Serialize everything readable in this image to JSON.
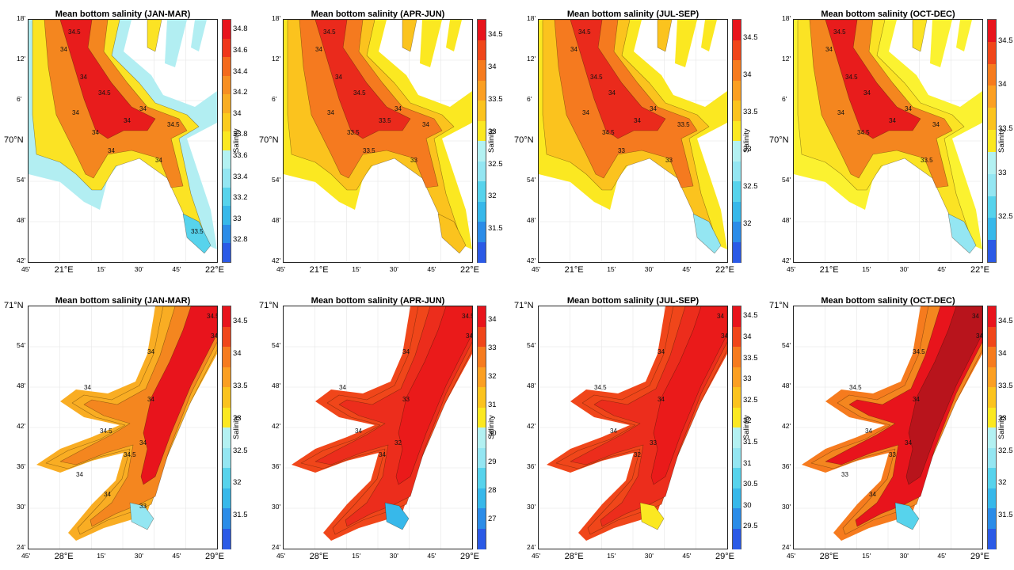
{
  "panels": [
    {
      "title": "Mean bottom salinity (JAN-MAR)",
      "region": "north",
      "y_ticks": [
        "18'",
        "12'",
        "6'",
        "70°N",
        "54'",
        "48'",
        "42'"
      ],
      "x_ticks": [
        "45'",
        "21°E",
        "15'",
        "30'",
        "45'",
        "22°E"
      ],
      "cb_ticks": [
        "34.8",
        "34.6",
        "34.4",
        "34.2",
        "34",
        "33.8",
        "33.6",
        "33.4",
        "33.2",
        "33",
        "32.8"
      ],
      "cb_colors": [
        "#e8141c",
        "#f0361a",
        "#f46a1c",
        "#f78f22",
        "#f9ad23",
        "#fbcb1e",
        "#fbe821",
        "#b3f1f2",
        "#94e6f2",
        "#57d3ec",
        "#37b8ea",
        "#2b8ce8",
        "#2b5ae6"
      ],
      "cb_label": "Salinity",
      "contour_labels": [
        "34.5",
        "34",
        "34",
        "34.5",
        "34",
        "34",
        "34",
        "34.5",
        "34",
        "34",
        "34",
        "33.5"
      ],
      "fill": {
        "deep": "#e81c1c",
        "mid": "#f4861f",
        "shallow": "#fbe324",
        "coast": "#b2eef2",
        "inlet": "#57d3ec"
      }
    },
    {
      "title": "Mean bottom salinity (APR-JUN)",
      "region": "north",
      "y_ticks": [
        "18'",
        "12'",
        "6'",
        "70°N",
        "54'",
        "48'",
        "42'"
      ],
      "x_ticks": [
        "45'",
        "21°E",
        "15'",
        "30'",
        "45'",
        "22°E"
      ],
      "cb_ticks": [
        "34.5",
        "34",
        "33.5",
        "33",
        "32.5",
        "32",
        "31.5"
      ],
      "cb_colors": [
        "#e8141c",
        "#f0461a",
        "#f67b1e",
        "#fb9f22",
        "#fbc31e",
        "#fbe821",
        "#b3f1f2",
        "#94e6f2",
        "#57d3ec",
        "#37b8ea",
        "#2b8ce8",
        "#2b5ae6"
      ],
      "cb_label": "Salinity",
      "contour_labels": [
        "34.5",
        "34",
        "34",
        "34.5",
        "34",
        "33.5",
        "34",
        "34",
        "33.5",
        "33",
        "33.5"
      ],
      "fill": {
        "deep": "#ea2a1c",
        "mid": "#f57a1f",
        "shallow": "#fbc31e",
        "coast": "#fbe821",
        "inlet": "#fbc31e"
      }
    },
    {
      "title": "Mean bottom salinity (JUL-SEP)",
      "region": "north",
      "y_ticks": [
        "18'",
        "12'",
        "6'",
        "70°N",
        "54'",
        "48'",
        "42'"
      ],
      "x_ticks": [
        "45'",
        "21°E",
        "15'",
        "30'",
        "45'",
        "22°E"
      ],
      "cb_ticks": [
        "34.5",
        "34",
        "33.5",
        "33",
        "32.5",
        "32"
      ],
      "cb_colors": [
        "#e8141c",
        "#f0461a",
        "#f67b1e",
        "#fb9f22",
        "#fbc31e",
        "#fbe821",
        "#b3f1f2",
        "#94e6f2",
        "#57d3ec",
        "#37b8ea",
        "#2b8ce8",
        "#2b5ae6"
      ],
      "cb_label": "Salinity",
      "contour_labels": [
        "34.5",
        "34",
        "34.5",
        "34",
        "34",
        "34.5",
        "34",
        "33.5",
        "34",
        "33",
        "33"
      ],
      "fill": {
        "deep": "#ea2a1c",
        "mid": "#f57a1f",
        "shallow": "#fbc31e",
        "coast": "#fbe821",
        "inlet": "#94e6f2"
      }
    },
    {
      "title": "Mean bottom salinity (OCT-DEC)",
      "region": "north",
      "y_ticks": [
        "18'",
        "12'",
        "6'",
        "70°N",
        "54'",
        "48'",
        "42'"
      ],
      "x_ticks": [
        "45'",
        "21°E",
        "15'",
        "30'",
        "45'",
        "22°E"
      ],
      "cb_ticks": [
        "34.5",
        "34",
        "33.5",
        "33",
        "32.5"
      ],
      "cb_colors": [
        "#e8141c",
        "#f0461a",
        "#f67b1e",
        "#fb9f22",
        "#fbc31e",
        "#fbe821",
        "#b3f1f2",
        "#94e6f2",
        "#57d3ec",
        "#37b8ea",
        "#2b5ae6"
      ],
      "cb_label": "Salinity",
      "contour_labels": [
        "34.5",
        "34",
        "34.5",
        "34",
        "34",
        "34.5",
        "34",
        "34",
        "34",
        "33.5"
      ],
      "fill": {
        "deep": "#e81c1c",
        "mid": "#f4861f",
        "shallow": "#fbe324",
        "coast": "#fbf230",
        "inlet": "#94e6f2"
      }
    },
    {
      "title": "Mean bottom salinity (JAN-MAR)",
      "region": "south",
      "y_ticks": [
        "71°N",
        "54'",
        "48'",
        "42'",
        "36'",
        "30'",
        "24'"
      ],
      "x_ticks": [
        "45'",
        "28°E",
        "15'",
        "30'",
        "45'",
        "29°E"
      ],
      "cb_ticks": [
        "34.5",
        "34",
        "33.5",
        "33",
        "32.5",
        "32",
        "31.5"
      ],
      "cb_colors": [
        "#e8141c",
        "#f0461a",
        "#f67b1e",
        "#fb9f22",
        "#fbc31e",
        "#fbe821",
        "#b3f1f2",
        "#94e6f2",
        "#57d3ec",
        "#37b8ea",
        "#2b8ce8",
        "#2b5ae6"
      ],
      "cb_label": "Salinity",
      "contour_labels": [
        "34.5",
        "34",
        "34",
        "34",
        "34.5",
        "34",
        "34",
        "34.5",
        "34",
        "34",
        "33"
      ],
      "fill": {
        "deep": "#e8141c",
        "mid": "#f4861f",
        "shallow": "#f9ad23",
        "coast": "#f9ad23",
        "inlet": "#94e6f2"
      }
    },
    {
      "title": "Mean bottom salinity (APR-JUN)",
      "region": "south",
      "y_ticks": [
        "71°N",
        "54'",
        "48'",
        "42'",
        "36'",
        "30'",
        "24'"
      ],
      "x_ticks": [
        "45'",
        "28°E",
        "15'",
        "30'",
        "45'",
        "29°E"
      ],
      "cb_ticks": [
        "34",
        "33",
        "32",
        "31",
        "30",
        "29",
        "28",
        "27"
      ],
      "cb_colors": [
        "#e8141c",
        "#f0461a",
        "#f67b1e",
        "#fb9f22",
        "#fbc31e",
        "#fbe821",
        "#b3f1f2",
        "#94e6f2",
        "#57d3ec",
        "#37b8ea",
        "#2b8ce8",
        "#2b5ae6"
      ],
      "cb_label": "Salinity",
      "contour_labels": [
        "34.5",
        "34",
        "34",
        "34",
        "34",
        "33",
        "32",
        "34"
      ],
      "fill": {
        "deep": "#ea1a1a",
        "mid": "#ec2d1c",
        "shallow": "#f0461a",
        "coast": "#f0461a",
        "inlet": "#37b8ea"
      }
    },
    {
      "title": "Mean bottom salinity (JUL-SEP)",
      "region": "south",
      "y_ticks": [
        "71°N",
        "54'",
        "48'",
        "42'",
        "36'",
        "30'",
        "24'"
      ],
      "x_ticks": [
        "45'",
        "28°E",
        "15'",
        "30'",
        "45'",
        "29°E"
      ],
      "cb_ticks": [
        "34.5",
        "34",
        "33.5",
        "33",
        "32.5",
        "32",
        "31.5",
        "31",
        "30.5",
        "30",
        "29.5"
      ],
      "cb_colors": [
        "#e8141c",
        "#f0461a",
        "#f67b1e",
        "#fb9f22",
        "#fbc31e",
        "#fbe821",
        "#b3f1f2",
        "#94e6f2",
        "#57d3ec",
        "#37b8ea",
        "#2b8ce8",
        "#2b5ae6"
      ],
      "cb_label": "Salinity",
      "contour_labels": [
        "34",
        "34",
        "34",
        "34.5",
        "34",
        "34",
        "33",
        "32"
      ],
      "fill": {
        "deep": "#ea1a1a",
        "mid": "#ec2d1c",
        "shallow": "#f0461a",
        "coast": "#f0461a",
        "inlet": "#fbe821"
      }
    },
    {
      "title": "Mean bottom salinity (OCT-DEC)",
      "region": "south",
      "y_ticks": [
        "71°N",
        "54'",
        "48'",
        "42'",
        "36'",
        "30'",
        "24'"
      ],
      "x_ticks": [
        "45'",
        "28°E",
        "15'",
        "30'",
        "45'",
        "29°E"
      ],
      "cb_ticks": [
        "34.5",
        "34",
        "33.5",
        "33",
        "32.5",
        "32",
        "31.5"
      ],
      "cb_colors": [
        "#e8141c",
        "#f0461a",
        "#f67b1e",
        "#fb9f22",
        "#fbc31e",
        "#fbe821",
        "#b3f1f2",
        "#94e6f2",
        "#57d3ec",
        "#37b8ea",
        "#2b8ce8",
        "#2b5ae6"
      ],
      "cb_label": "Salinity",
      "contour_labels": [
        "34",
        "34",
        "34.5",
        "34.5",
        "34",
        "34",
        "34",
        "33",
        "33",
        "34"
      ],
      "fill": {
        "deep": "#b8141c",
        "mid": "#e8141c",
        "shallow": "#f4861f",
        "coast": "#f67b1e",
        "inlet": "#57d3ec"
      }
    }
  ]
}
